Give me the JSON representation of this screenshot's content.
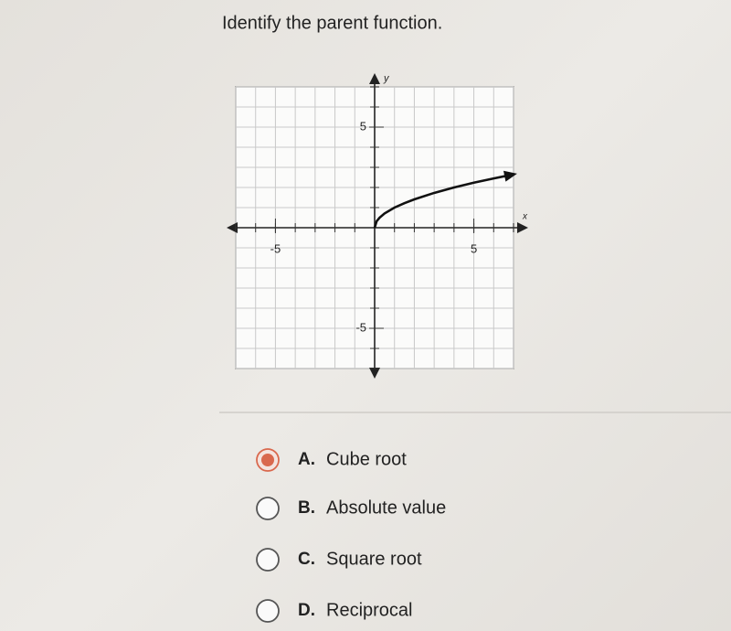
{
  "question": "Identify the parent function.",
  "graph": {
    "type": "line",
    "x_label": "x",
    "y_label": "y",
    "xlim": [
      -7,
      7
    ],
    "ylim": [
      -7,
      7
    ],
    "xticks": [
      -5,
      5
    ],
    "yticks": [
      5,
      -5
    ],
    "xgrid": [
      -7,
      -6,
      -5,
      -4,
      -3,
      -2,
      -1,
      0,
      1,
      2,
      3,
      4,
      5,
      6,
      7
    ],
    "ygrid": [
      -7,
      -6,
      -5,
      -4,
      -3,
      -2,
      -1,
      0,
      1,
      2,
      3,
      4,
      5,
      6,
      7
    ],
    "color": "#111111",
    "x": [
      0,
      0.1,
      0.25,
      0.5,
      1,
      1.5,
      2,
      3,
      4,
      5,
      6,
      7
    ],
    "values": [
      0,
      0.32,
      0.5,
      0.71,
      1,
      1.22,
      1.41,
      1.73,
      2,
      2.24,
      2.45,
      2.65
    ]
  },
  "options": [
    {
      "letter": "A.",
      "text": "Cube root"
    },
    {
      "letter": "B.",
      "text": "Absolute value"
    },
    {
      "letter": "C.",
      "text": "Square root"
    },
    {
      "letter": "D.",
      "text": "Reciprocal"
    }
  ],
  "selected": 0
}
